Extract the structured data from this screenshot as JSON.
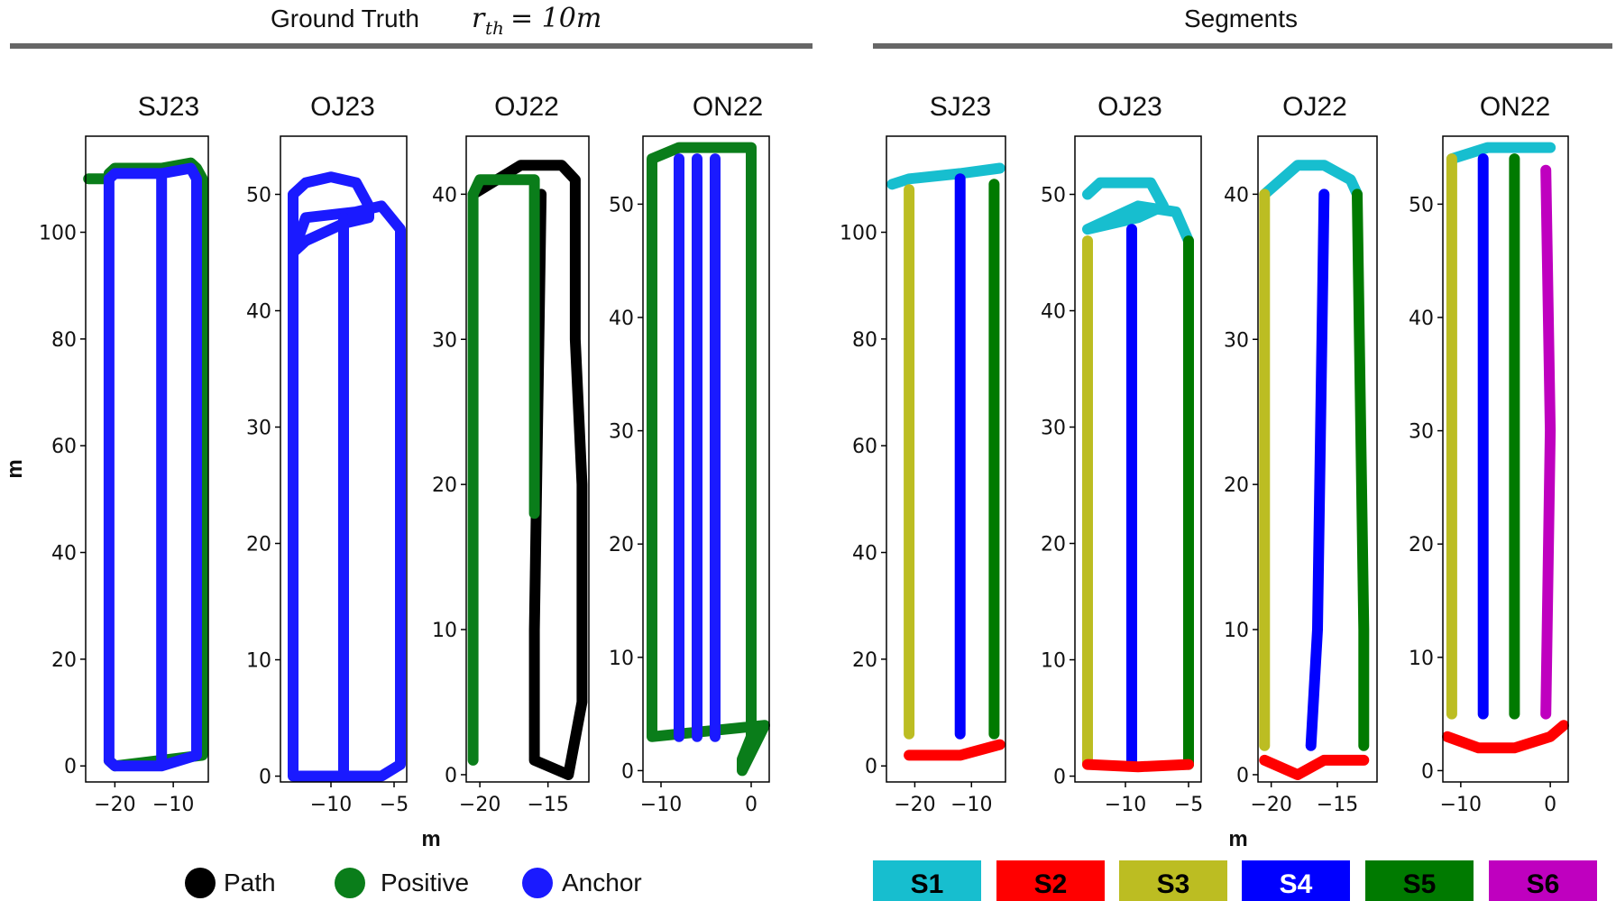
{
  "headings": {
    "left_title": "Ground Truth",
    "left_math": "r",
    "left_math_sub": "th",
    "left_math_rest": " = 10m",
    "right_title": "Segments"
  },
  "axis_labels": {
    "x": "m",
    "y": "m"
  },
  "legend": [
    {
      "label": "Path",
      "color": "#000000"
    },
    {
      "label": "Positive",
      "color": "#0a7d1a"
    },
    {
      "label": "Anchor",
      "color": "#1a1aff"
    }
  ],
  "segments_legend": [
    {
      "label": "S1",
      "color": "#17becf"
    },
    {
      "label": "S2",
      "color": "#ff0000"
    },
    {
      "label": "S3",
      "color": "#bcbd22"
    },
    {
      "label": "S4",
      "color": "#0000ff"
    },
    {
      "label": "S5",
      "color": "#007a00"
    },
    {
      "label": "S6",
      "color": "#bf00bf"
    }
  ],
  "chart_data": [
    {
      "type": "line",
      "panel": "SJ23",
      "xlim": [
        -25,
        -4
      ],
      "ylim": [
        -3,
        118
      ],
      "xticks": [
        -20,
        -10
      ],
      "yticks": [
        0,
        20,
        40,
        60,
        80,
        100
      ],
      "xlabel": "",
      "ylabel": "m",
      "series": [
        {
          "color": "#0a7d1a",
          "x": [
            -24.5,
            -21,
            -21,
            -20,
            -12,
            -12,
            -7,
            -6,
            -5,
            -5,
            -20,
            -21
          ],
          "y": [
            110,
            110,
            111,
            112,
            112,
            112,
            113,
            112,
            110,
            2,
            0,
            1
          ]
        },
        {
          "color": "#1a1aff",
          "x": [
            -21,
            -20,
            -12,
            -7,
            -6,
            -6,
            -12,
            -12,
            -12,
            -20,
            -21,
            -21
          ],
          "y": [
            110,
            111,
            111,
            112,
            110,
            2,
            0,
            110,
            0,
            0,
            1,
            110
          ]
        }
      ]
    },
    {
      "type": "line",
      "panel": "OJ23",
      "xlim": [
        -14,
        -4
      ],
      "ylim": [
        -0.5,
        55
      ],
      "xticks": [
        -10,
        -5
      ],
      "yticks": [
        0,
        10,
        20,
        30,
        40,
        50
      ],
      "xlabel": "",
      "ylabel": "",
      "series": [
        {
          "color": "#1a1aff",
          "x": [
            -13,
            -13,
            -12,
            -10,
            -8,
            -7,
            -7,
            -9,
            -12,
            -13,
            -12,
            -8,
            -6,
            -4.5,
            -4.5,
            -6,
            -12,
            -13
          ],
          "y": [
            0,
            50,
            51,
            51.5,
            51,
            49,
            48,
            47.5,
            46,
            45,
            48,
            48.5,
            49,
            47,
            1,
            0,
            0,
            0
          ]
        },
        {
          "color": "#1a1aff",
          "x": [
            -9,
            -9
          ],
          "y": [
            0,
            48
          ]
        }
      ]
    },
    {
      "type": "line",
      "panel": "OJ22",
      "xlim": [
        -21,
        -12
      ],
      "ylim": [
        -0.5,
        44
      ],
      "xticks": [
        -20,
        -15
      ],
      "yticks": [
        0,
        10,
        20,
        30,
        40
      ],
      "xlabel": "m",
      "ylabel": "",
      "series": [
        {
          "color": "#000000",
          "x": [
            -20.5,
            -17,
            -16,
            -14,
            -13,
            -13,
            -12.5,
            -12.5,
            -13.5,
            -16,
            -16,
            -15.5
          ],
          "y": [
            40,
            42,
            42,
            42,
            41,
            30,
            20,
            5,
            0,
            1,
            10,
            40
          ]
        },
        {
          "color": "#0a7d1a",
          "x": [
            -20.5,
            -20.5,
            -20,
            -16,
            -16
          ],
          "y": [
            1,
            40,
            41,
            41,
            18
          ]
        }
      ]
    },
    {
      "type": "line",
      "panel": "ON22",
      "xlim": [
        -12,
        2
      ],
      "ylim": [
        -1,
        56
      ],
      "xticks": [
        -10,
        0
      ],
      "yticks": [
        0,
        10,
        20,
        30,
        40,
        50
      ],
      "xlabel": "",
      "ylabel": "",
      "series": [
        {
          "color": "#0a7d1a",
          "x": [
            -11,
            -11,
            -8,
            0,
            0,
            -1,
            -1,
            1.5,
            -11
          ],
          "y": [
            3,
            54,
            55,
            55,
            3,
            1,
            0,
            4,
            3
          ]
        },
        {
          "color": "#1a1aff",
          "x": [
            -8,
            -8
          ],
          "y": [
            3,
            54
          ]
        },
        {
          "color": "#1a1aff",
          "x": [
            -6,
            -6
          ],
          "y": [
            3,
            54
          ]
        },
        {
          "color": "#1a1aff",
          "x": [
            -4,
            -4
          ],
          "y": [
            3,
            54
          ]
        }
      ]
    },
    {
      "type": "line",
      "panel": "SJ23",
      "xlim": [
        -25,
        -4
      ],
      "ylim": [
        -3,
        118
      ],
      "xticks": [
        -20,
        -10
      ],
      "yticks": [
        0,
        20,
        40,
        60,
        80,
        100
      ],
      "xlabel": "",
      "ylabel": "",
      "series": [
        {
          "name": "S1",
          "color": "#17becf",
          "x": [
            -24,
            -21,
            -12,
            -5
          ],
          "y": [
            109,
            110,
            111,
            112
          ]
        },
        {
          "name": "S3",
          "color": "#bcbd22",
          "x": [
            -21,
            -21
          ],
          "y": [
            108,
            6
          ]
        },
        {
          "name": "S4",
          "color": "#0000ff",
          "x": [
            -12,
            -12
          ],
          "y": [
            110,
            6
          ]
        },
        {
          "name": "S5",
          "color": "#007a00",
          "x": [
            -6,
            -6
          ],
          "y": [
            109,
            6
          ]
        },
        {
          "name": "S2",
          "color": "#ff0000",
          "x": [
            -21,
            -12,
            -5
          ],
          "y": [
            2,
            2,
            4
          ]
        }
      ]
    },
    {
      "type": "line",
      "panel": "OJ23",
      "xlim": [
        -14,
        -4
      ],
      "ylim": [
        -0.5,
        55
      ],
      "xticks": [
        -10,
        -5
      ],
      "yticks": [
        0,
        10,
        20,
        30,
        40,
        50
      ],
      "xlabel": "",
      "ylabel": "",
      "series": [
        {
          "name": "S1",
          "color": "#17becf",
          "x": [
            -13,
            -12,
            -8,
            -7,
            -9,
            -13,
            -9,
            -6,
            -5
          ],
          "y": [
            50,
            51,
            51,
            49,
            48,
            47,
            49,
            48.5,
            46
          ]
        },
        {
          "name": "S3",
          "color": "#bcbd22",
          "x": [
            -13,
            -13
          ],
          "y": [
            46,
            1
          ]
        },
        {
          "name": "S4",
          "color": "#0000ff",
          "x": [
            -9.5,
            -9.5
          ],
          "y": [
            47,
            1
          ]
        },
        {
          "name": "S5",
          "color": "#007a00",
          "x": [
            -5,
            -5
          ],
          "y": [
            46,
            1
          ]
        },
        {
          "name": "S2",
          "color": "#ff0000",
          "x": [
            -13,
            -9,
            -5
          ],
          "y": [
            1,
            0.8,
            1
          ]
        }
      ]
    },
    {
      "type": "line",
      "panel": "OJ22",
      "xlim": [
        -21,
        -12
      ],
      "ylim": [
        -0.5,
        44
      ],
      "xticks": [
        -20,
        -15
      ],
      "yticks": [
        0,
        10,
        20,
        30,
        40
      ],
      "xlabel": "",
      "ylabel": "",
      "series": [
        {
          "name": "S1",
          "color": "#17becf",
          "x": [
            -20.5,
            -18,
            -16,
            -14,
            -13.5
          ],
          "y": [
            40,
            42,
            42,
            41,
            40
          ]
        },
        {
          "name": "S3",
          "color": "#bcbd22",
          "x": [
            -20.5,
            -20.5
          ],
          "y": [
            40,
            2
          ]
        },
        {
          "name": "S4",
          "color": "#0000ff",
          "x": [
            -16,
            -16.5,
            -17
          ],
          "y": [
            40,
            10,
            2
          ]
        },
        {
          "name": "S5",
          "color": "#007a00",
          "x": [
            -13.5,
            -13,
            -13
          ],
          "y": [
            40,
            10,
            2
          ]
        },
        {
          "name": "S2",
          "color": "#ff0000",
          "x": [
            -20.5,
            -18,
            -16,
            -13
          ],
          "y": [
            1,
            0,
            1,
            1
          ]
        }
      ]
    },
    {
      "type": "line",
      "panel": "ON22",
      "xlim": [
        -12,
        2
      ],
      "ylim": [
        -1,
        56
      ],
      "xticks": [
        -10,
        0
      ],
      "yticks": [
        0,
        10,
        20,
        30,
        40,
        50
      ],
      "xlabel": "",
      "ylabel": "",
      "series": [
        {
          "name": "S1",
          "color": "#17becf",
          "x": [
            -11,
            -7,
            -3,
            0
          ],
          "y": [
            54,
            55,
            55,
            55
          ]
        },
        {
          "name": "S3",
          "color": "#bcbd22",
          "x": [
            -11,
            -11
          ],
          "y": [
            54,
            5
          ]
        },
        {
          "name": "S4",
          "color": "#0000ff",
          "x": [
            -7.5,
            -7.5
          ],
          "y": [
            54,
            5
          ]
        },
        {
          "name": "S5",
          "color": "#007a00",
          "x": [
            -4,
            -4
          ],
          "y": [
            54,
            5
          ]
        },
        {
          "name": "S6",
          "color": "#bf00bf",
          "x": [
            -0.5,
            0,
            -0.5
          ],
          "y": [
            53,
            30,
            5
          ]
        },
        {
          "name": "S2",
          "color": "#ff0000",
          "x": [
            -11.5,
            -8,
            -4,
            0,
            1.5
          ],
          "y": [
            3,
            2,
            2,
            3,
            4
          ]
        }
      ]
    }
  ]
}
